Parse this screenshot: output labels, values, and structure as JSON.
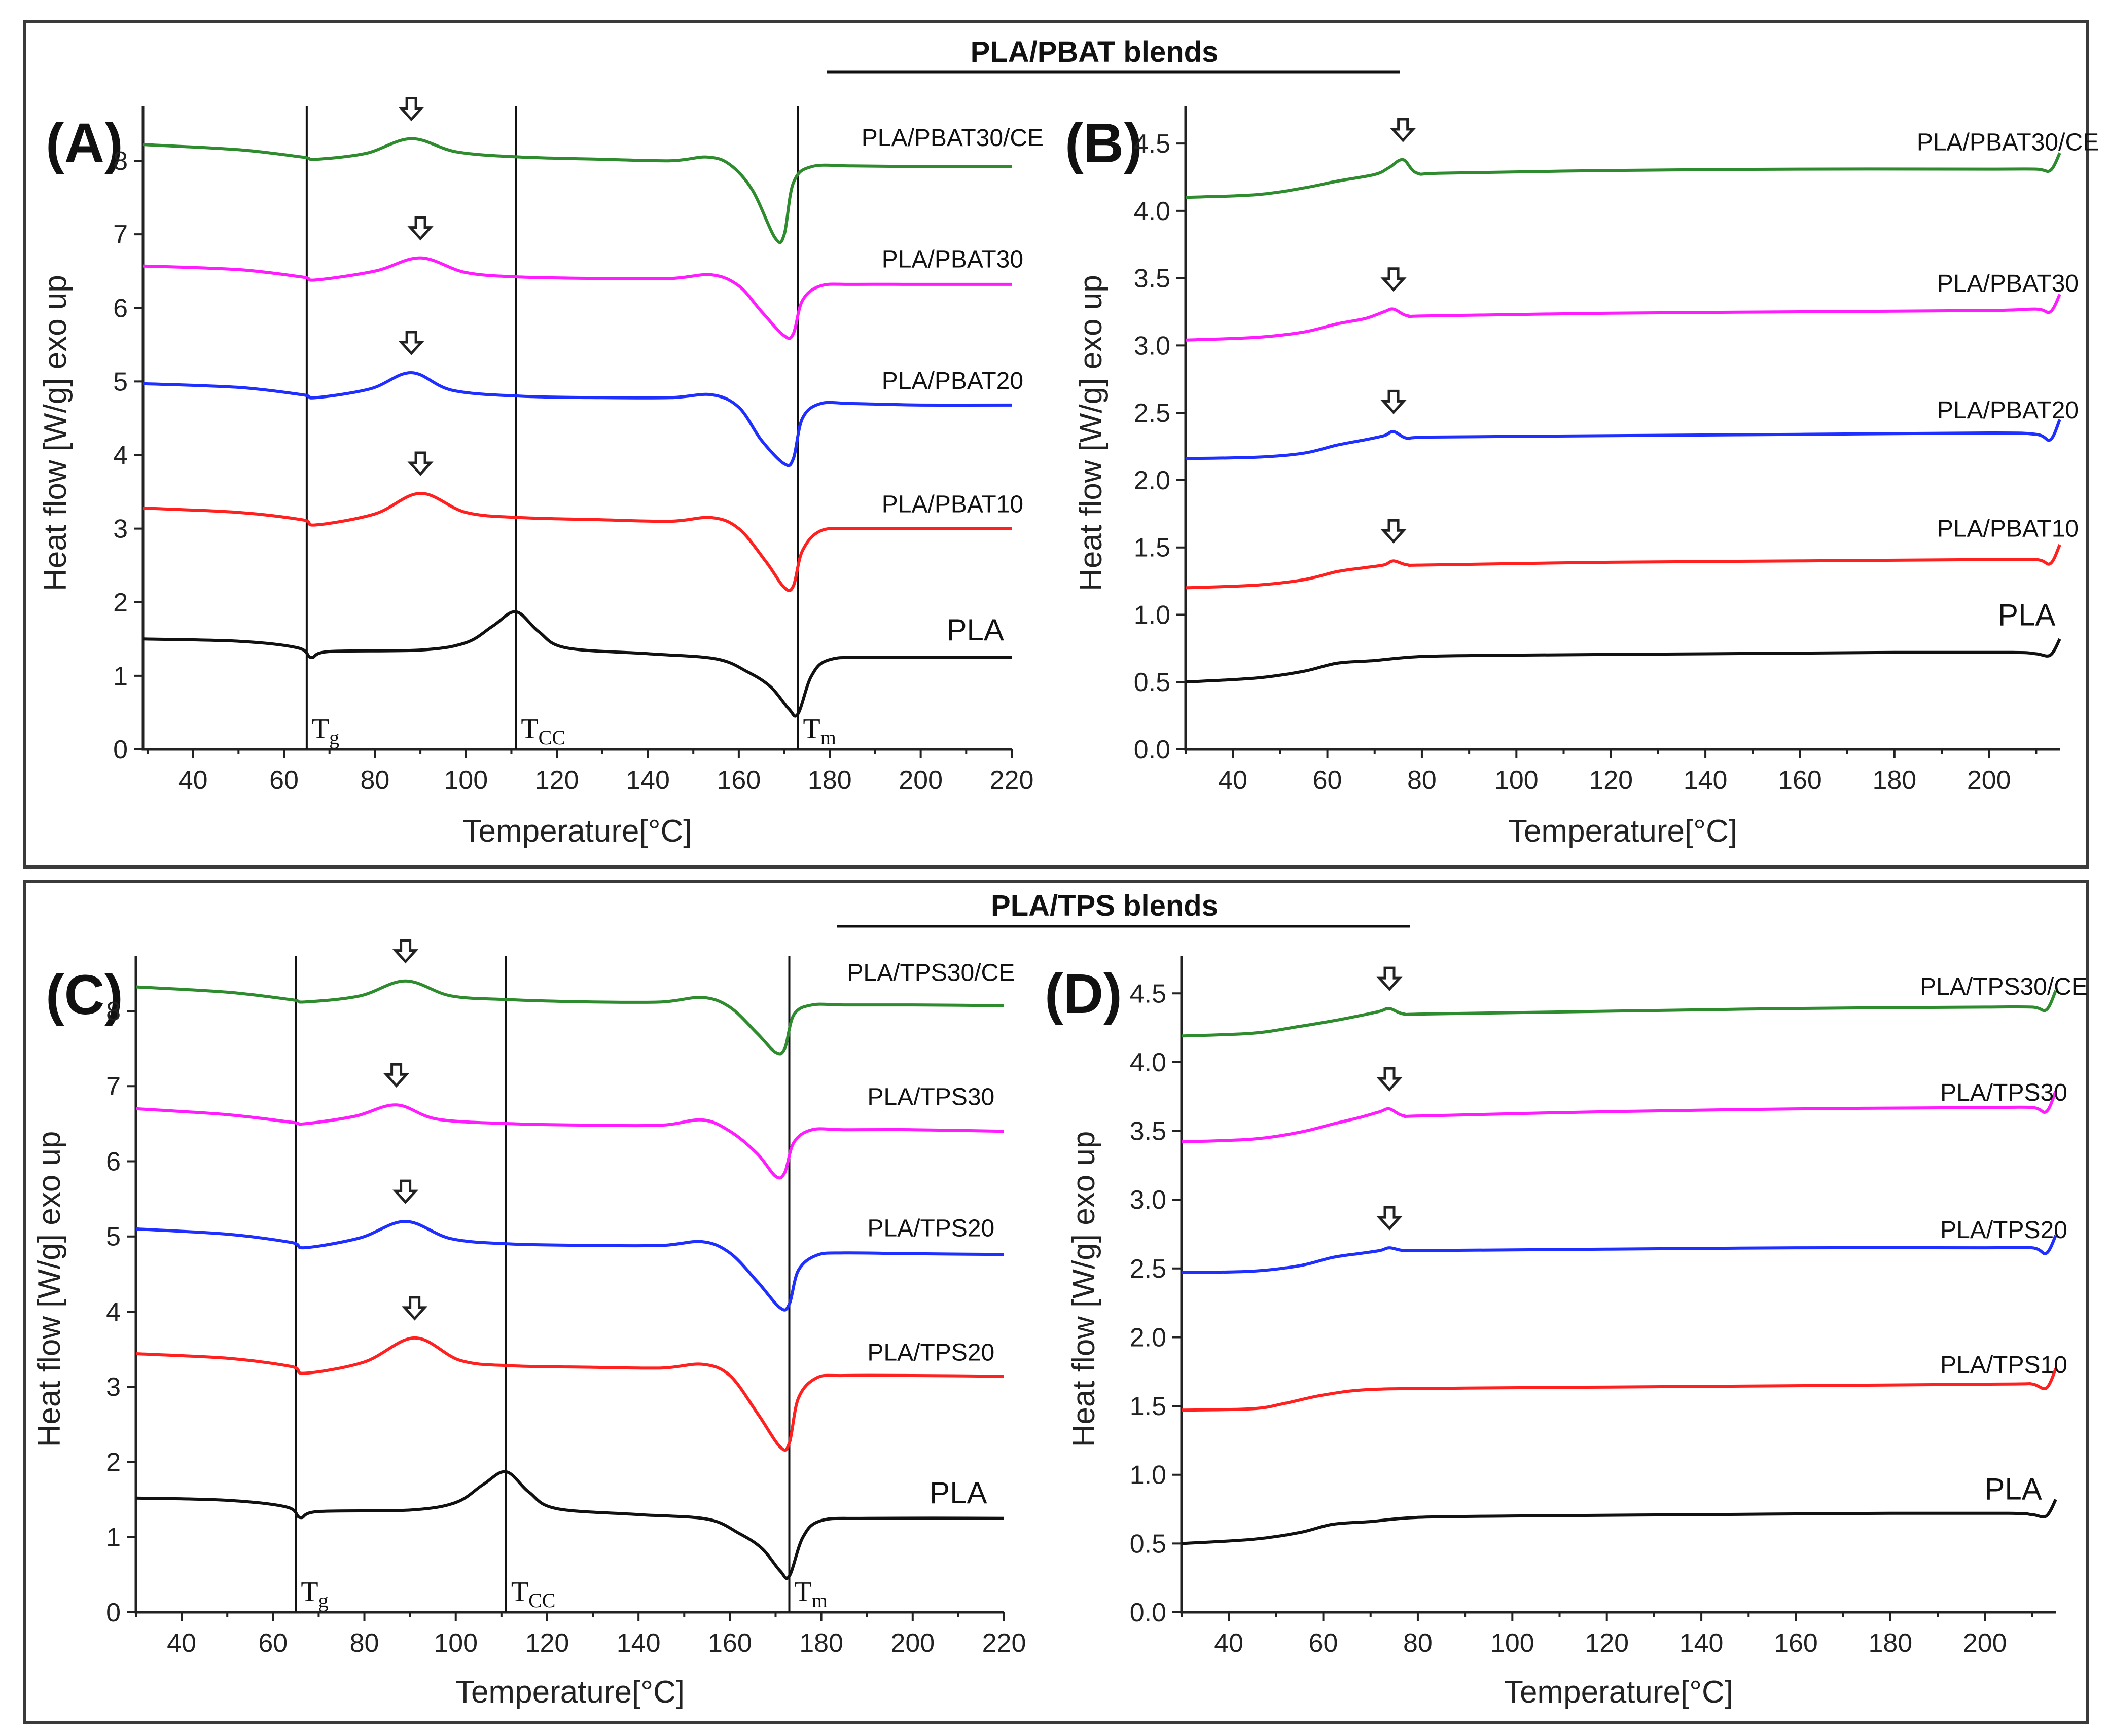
{
  "figure": {
    "section_top_title": "PLA/PBAT blends",
    "section_bottom_title": "PLA/TPS blends",
    "colors": {
      "green": "#2e8b2e",
      "magenta": "#ff1dff",
      "blue": "#1f2fff",
      "red": "#ff2020",
      "black": "#111111"
    }
  },
  "chart_data": [
    {
      "id": "A",
      "type": "line",
      "panel_label": "(A)",
      "xlabel": "Temperature[°C]",
      "ylabel": "Heat flow [W/g] exo up",
      "xlim": [
        29,
        220
      ],
      "ylim": [
        0,
        8.6
      ],
      "xticks": [
        40,
        60,
        80,
        100,
        120,
        140,
        160,
        180,
        200,
        220
      ],
      "yticks": [
        0,
        1,
        2,
        3,
        4,
        5,
        6,
        7,
        8
      ],
      "transitions": [
        {
          "x": 65,
          "main": "T",
          "sub": "g"
        },
        {
          "x": 111,
          "main": "T",
          "sub": "CC"
        },
        {
          "x": 173,
          "main": "T",
          "sub": "m"
        }
      ],
      "series": [
        {
          "name": "PLA/PBAT30/CE",
          "color": "green",
          "label_at": [
            207,
            8.2
          ],
          "arrow_at": 88,
          "x": [
            29,
            50,
            64,
            67,
            78,
            88,
            98,
            112,
            130,
            145,
            153,
            158,
            163,
            168,
            170,
            172,
            176,
            185,
            200,
            220
          ],
          "y": [
            8.22,
            8.15,
            8.05,
            8.02,
            8.1,
            8.3,
            8.12,
            8.05,
            8.02,
            8.0,
            8.05,
            7.95,
            7.6,
            6.95,
            7.0,
            7.7,
            7.92,
            7.93,
            7.92,
            7.92
          ]
        },
        {
          "name": "PLA/PBAT30",
          "color": "magenta",
          "label_at": [
            207,
            6.55
          ],
          "arrow_at": 90,
          "x": [
            29,
            50,
            64,
            67,
            80,
            90,
            100,
            112,
            130,
            145,
            154,
            160,
            165,
            170,
            172,
            174,
            178,
            185,
            200,
            220
          ],
          "y": [
            6.57,
            6.52,
            6.42,
            6.38,
            6.5,
            6.68,
            6.48,
            6.42,
            6.4,
            6.4,
            6.45,
            6.3,
            5.95,
            5.62,
            5.65,
            6.1,
            6.3,
            6.32,
            6.32,
            6.32
          ]
        },
        {
          "name": "PLA/PBAT20",
          "color": "blue",
          "label_at": [
            207,
            4.9
          ],
          "arrow_at": 88,
          "x": [
            29,
            50,
            64,
            67,
            79,
            88,
            97,
            112,
            130,
            145,
            154,
            160,
            165,
            170,
            172,
            174,
            178,
            185,
            200,
            220
          ],
          "y": [
            4.97,
            4.92,
            4.82,
            4.78,
            4.9,
            5.12,
            4.88,
            4.8,
            4.78,
            4.78,
            4.82,
            4.65,
            4.2,
            3.88,
            3.95,
            4.5,
            4.7,
            4.7,
            4.68,
            4.68
          ]
        },
        {
          "name": "PLA/PBAT10",
          "color": "red",
          "label_at": [
            207,
            3.22
          ],
          "arrow_at": 90,
          "x": [
            29,
            50,
            64,
            67,
            80,
            90,
            100,
            112,
            130,
            145,
            154,
            160,
            166,
            170,
            172,
            174,
            178,
            185,
            200,
            220
          ],
          "y": [
            3.28,
            3.22,
            3.12,
            3.05,
            3.2,
            3.48,
            3.22,
            3.15,
            3.12,
            3.1,
            3.15,
            3.0,
            2.55,
            2.2,
            2.22,
            2.7,
            2.97,
            3.0,
            3.0,
            3.0
          ]
        },
        {
          "name": "PLA",
          "color": "black",
          "label_at": [
            212,
            1.48
          ],
          "x": [
            29,
            50,
            63,
            66,
            70,
            90,
            100,
            106,
            111,
            116,
            122,
            140,
            155,
            162,
            167,
            171,
            173,
            176,
            180,
            190,
            220
          ],
          "y": [
            1.5,
            1.47,
            1.38,
            1.25,
            1.33,
            1.35,
            1.45,
            1.68,
            1.87,
            1.6,
            1.38,
            1.3,
            1.23,
            1.05,
            0.85,
            0.55,
            0.48,
            1.0,
            1.22,
            1.25,
            1.25
          ]
        }
      ]
    },
    {
      "id": "B",
      "type": "line",
      "panel_label": "(B)",
      "xlabel": "Temperature[°C]",
      "ylabel": "Heat flow [W/g] exo up",
      "xlim": [
        30,
        215
      ],
      "ylim": [
        0,
        4.7
      ],
      "xticks": [
        40,
        60,
        80,
        100,
        120,
        140,
        160,
        180,
        200
      ],
      "yticks": [
        0.0,
        0.5,
        1.0,
        1.5,
        2.0,
        2.5,
        3.0,
        3.5,
        4.0,
        4.5
      ],
      "series": [
        {
          "name": "PLA/PBAT30/CE",
          "color": "green",
          "label_at": [
            204,
            4.45
          ],
          "arrow_at": 76,
          "x": [
            30,
            45,
            55,
            62,
            70,
            73,
            76,
            79,
            85,
            120,
            160,
            200,
            210,
            213,
            215
          ],
          "y": [
            4.1,
            4.12,
            4.17,
            4.22,
            4.27,
            4.32,
            4.38,
            4.28,
            4.28,
            4.3,
            4.31,
            4.31,
            4.31,
            4.3,
            4.43
          ]
        },
        {
          "name": "PLA/PBAT30",
          "color": "magenta",
          "label_at": [
            204,
            3.4
          ],
          "arrow_at": 74,
          "x": [
            30,
            45,
            55,
            62,
            68,
            72,
            74,
            77,
            82,
            120,
            160,
            200,
            210,
            213,
            215
          ],
          "y": [
            3.04,
            3.06,
            3.1,
            3.16,
            3.2,
            3.25,
            3.27,
            3.22,
            3.22,
            3.24,
            3.25,
            3.26,
            3.27,
            3.25,
            3.38
          ]
        },
        {
          "name": "PLA/PBAT20",
          "color": "blue",
          "label_at": [
            204,
            2.46
          ],
          "arrow_at": 74,
          "x": [
            30,
            45,
            55,
            62,
            68,
            72,
            74,
            77,
            82,
            120,
            160,
            200,
            210,
            213,
            215
          ],
          "y": [
            2.16,
            2.17,
            2.2,
            2.26,
            2.3,
            2.33,
            2.36,
            2.31,
            2.32,
            2.33,
            2.34,
            2.35,
            2.34,
            2.3,
            2.45
          ]
        },
        {
          "name": "PLA/PBAT10",
          "color": "red",
          "label_at": [
            204,
            1.58
          ],
          "arrow_at": 74,
          "x": [
            30,
            45,
            55,
            62,
            68,
            72,
            74,
            77,
            82,
            120,
            160,
            200,
            210,
            213,
            215
          ],
          "y": [
            1.2,
            1.22,
            1.26,
            1.32,
            1.35,
            1.37,
            1.4,
            1.37,
            1.37,
            1.39,
            1.4,
            1.41,
            1.41,
            1.38,
            1.52
          ]
        },
        {
          "name": "PLA",
          "color": "black",
          "label_at": [
            208,
            0.92
          ],
          "x": [
            30,
            45,
            55,
            62,
            70,
            80,
            100,
            140,
            180,
            205,
            210,
            213,
            215
          ],
          "y": [
            0.5,
            0.53,
            0.58,
            0.64,
            0.66,
            0.69,
            0.7,
            0.71,
            0.72,
            0.72,
            0.71,
            0.7,
            0.82
          ]
        }
      ]
    },
    {
      "id": "C",
      "type": "line",
      "panel_label": "(C)",
      "xlabel": "Temperature[°C]",
      "ylabel": "Heat flow [W/g] exo up",
      "xlim": [
        30,
        220
      ],
      "ylim": [
        0,
        8.6
      ],
      "xticks": [
        40,
        60,
        80,
        100,
        120,
        140,
        160,
        180,
        200,
        220
      ],
      "yticks": [
        0,
        1,
        2,
        3,
        4,
        5,
        6,
        7,
        8
      ],
      "transitions": [
        {
          "x": 65,
          "main": "T",
          "sub": "g"
        },
        {
          "x": 111,
          "main": "T",
          "sub": "CC"
        },
        {
          "x": 173,
          "main": "T",
          "sub": "m"
        }
      ],
      "series": [
        {
          "name": "PLA/TPS30/CE",
          "color": "green",
          "label_at": [
            204,
            8.4
          ],
          "arrow_at": 89,
          "x": [
            30,
            50,
            64,
            67,
            79,
            89,
            99,
            112,
            130,
            145,
            154,
            160,
            166,
            170,
            172,
            174,
            178,
            185,
            200,
            220
          ],
          "y": [
            8.32,
            8.25,
            8.15,
            8.12,
            8.2,
            8.4,
            8.2,
            8.15,
            8.12,
            8.12,
            8.18,
            8.05,
            7.7,
            7.45,
            7.5,
            7.95,
            8.08,
            8.08,
            8.08,
            8.07
          ]
        },
        {
          "name": "PLA/TPS30",
          "color": "magenta",
          "label_at": [
            204,
            6.75
          ],
          "arrow_at": 87,
          "x": [
            30,
            50,
            64,
            67,
            78,
            87,
            96,
            112,
            130,
            145,
            154,
            160,
            166,
            170,
            172,
            174,
            178,
            185,
            200,
            220
          ],
          "y": [
            6.7,
            6.62,
            6.52,
            6.5,
            6.6,
            6.75,
            6.56,
            6.5,
            6.48,
            6.48,
            6.55,
            6.4,
            6.1,
            5.8,
            5.85,
            6.25,
            6.42,
            6.42,
            6.42,
            6.4
          ]
        },
        {
          "name": "PLA/TPS20",
          "color": "blue",
          "label_at": [
            204,
            5.0
          ],
          "arrow_at": 89,
          "x": [
            30,
            50,
            64,
            67,
            79,
            89,
            99,
            112,
            130,
            145,
            154,
            160,
            166,
            171,
            173,
            175,
            179,
            185,
            200,
            220
          ],
          "y": [
            5.1,
            5.03,
            4.92,
            4.85,
            4.98,
            5.2,
            4.97,
            4.9,
            4.88,
            4.88,
            4.93,
            4.78,
            4.4,
            4.05,
            4.1,
            4.55,
            4.75,
            4.78,
            4.77,
            4.76
          ]
        },
        {
          "name": "PLA/TPS20",
          "color": "red",
          "label_at": [
            204,
            3.35
          ],
          "arrow_at": 91,
          "x": [
            30,
            50,
            64,
            67,
            80,
            91,
            101,
            112,
            130,
            145,
            154,
            160,
            166,
            171,
            173,
            175,
            179,
            185,
            200,
            220
          ],
          "y": [
            3.44,
            3.38,
            3.27,
            3.18,
            3.33,
            3.65,
            3.35,
            3.28,
            3.26,
            3.25,
            3.3,
            3.15,
            2.65,
            2.2,
            2.25,
            2.85,
            3.12,
            3.15,
            3.15,
            3.14
          ]
        },
        {
          "name": "PLA",
          "color": "black",
          "label_at": [
            210,
            1.45
          ],
          "x": [
            30,
            50,
            63,
            66,
            70,
            90,
            100,
            106,
            111,
            116,
            122,
            140,
            155,
            162,
            167,
            171,
            173,
            176,
            180,
            190,
            220
          ],
          "y": [
            1.52,
            1.49,
            1.4,
            1.26,
            1.34,
            1.36,
            1.46,
            1.7,
            1.87,
            1.6,
            1.38,
            1.3,
            1.24,
            1.05,
            0.85,
            0.55,
            0.48,
            1.0,
            1.22,
            1.25,
            1.25
          ]
        }
      ]
    },
    {
      "id": "D",
      "type": "line",
      "panel_label": "(D)",
      "xlabel": "Temperature[°C]",
      "ylabel": "Heat flow [W/g] exo up",
      "xlim": [
        30,
        215
      ],
      "ylim": [
        0,
        4.7
      ],
      "xticks": [
        40,
        60,
        80,
        100,
        120,
        140,
        160,
        180,
        200
      ],
      "yticks": [
        0.0,
        0.5,
        1.0,
        1.5,
        2.0,
        2.5,
        3.0,
        3.5,
        4.0,
        4.5
      ],
      "series": [
        {
          "name": "PLA/TPS30/CE",
          "color": "green",
          "label_at": [
            204,
            4.49
          ],
          "arrow_at": 74,
          "x": [
            30,
            45,
            55,
            62,
            68,
            72,
            74,
            77,
            82,
            120,
            160,
            200,
            210,
            213,
            215
          ],
          "y": [
            4.19,
            4.21,
            4.26,
            4.3,
            4.34,
            4.37,
            4.39,
            4.35,
            4.35,
            4.37,
            4.39,
            4.4,
            4.4,
            4.38,
            4.52
          ]
        },
        {
          "name": "PLA/TPS30",
          "color": "magenta",
          "label_at": [
            204,
            3.72
          ],
          "arrow_at": 74,
          "x": [
            30,
            45,
            55,
            62,
            68,
            72,
            74,
            77,
            82,
            120,
            160,
            200,
            210,
            213,
            215
          ],
          "y": [
            3.42,
            3.44,
            3.49,
            3.55,
            3.6,
            3.64,
            3.66,
            3.61,
            3.61,
            3.64,
            3.66,
            3.67,
            3.67,
            3.64,
            3.79
          ]
        },
        {
          "name": "PLA/TPS20",
          "color": "blue",
          "label_at": [
            204,
            2.72
          ],
          "arrow_at": 74,
          "x": [
            30,
            45,
            55,
            62,
            68,
            72,
            74,
            77,
            82,
            120,
            160,
            200,
            210,
            213,
            215
          ],
          "y": [
            2.47,
            2.48,
            2.52,
            2.58,
            2.61,
            2.63,
            2.65,
            2.63,
            2.63,
            2.64,
            2.65,
            2.65,
            2.65,
            2.61,
            2.74
          ]
        },
        {
          "name": "PLA/TPS10",
          "color": "red",
          "label_at": [
            204,
            1.74
          ],
          "x": [
            30,
            45,
            52,
            60,
            70,
            90,
            130,
            170,
            205,
            210,
            213,
            215
          ],
          "y": [
            1.47,
            1.48,
            1.52,
            1.58,
            1.62,
            1.63,
            1.64,
            1.65,
            1.66,
            1.66,
            1.63,
            1.77
          ]
        },
        {
          "name": "PLA",
          "color": "black",
          "label_at": [
            206,
            0.82
          ],
          "x": [
            30,
            45,
            55,
            62,
            70,
            80,
            100,
            140,
            180,
            205,
            210,
            213,
            215
          ],
          "y": [
            0.5,
            0.53,
            0.58,
            0.64,
            0.66,
            0.69,
            0.7,
            0.71,
            0.72,
            0.72,
            0.71,
            0.7,
            0.82
          ]
        }
      ]
    }
  ]
}
